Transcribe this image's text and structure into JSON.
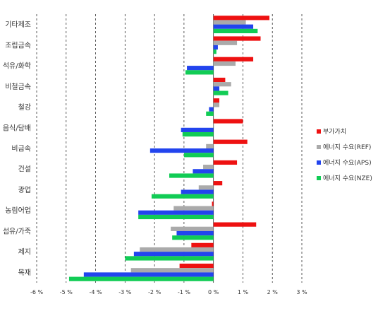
{
  "chart_data": {
    "type": "bar",
    "orientation": "horizontal",
    "categories": [
      "기타제조",
      "조립금속",
      "석유/화학",
      "비철금속",
      "철강",
      "음식/담배",
      "비금속",
      "건설",
      "광업",
      "농림어업",
      "섬유/가죽",
      "제지",
      "목재"
    ],
    "series": [
      {
        "name": "부가가치",
        "color": "#ee1111",
        "values": [
          1.9,
          1.6,
          1.35,
          0.4,
          0.2,
          1.0,
          1.15,
          0.8,
          0.3,
          -0.05,
          1.45,
          -0.75,
          -1.15
        ]
      },
      {
        "name": "에너지 수요(REF)",
        "color": "#aaaaaa",
        "values": [
          1.1,
          0.8,
          0.75,
          0.6,
          0.2,
          0.0,
          -0.25,
          -0.35,
          -0.5,
          -1.35,
          -1.45,
          -2.5,
          -2.8
        ]
      },
      {
        "name": "에너지 수요(APS)",
        "color": "#2244ee",
        "values": [
          1.35,
          0.15,
          -0.9,
          0.2,
          -0.15,
          -1.1,
          -2.15,
          -0.7,
          -1.1,
          -2.55,
          -1.25,
          -2.7,
          -4.4
        ]
      },
      {
        "name": "에너지 수요(NZE)",
        "color": "#11cc55",
        "values": [
          1.5,
          0.1,
          -0.95,
          0.5,
          -0.25,
          -1.05,
          -1.0,
          -1.5,
          -2.1,
          -2.55,
          -1.4,
          -3.0,
          -4.9
        ]
      }
    ],
    "x_ticks": [
      "-6 %",
      "-5 %",
      "-4 %",
      "-3 %",
      "-2 %",
      "-1 %",
      "0 %",
      "1 %",
      "2 %",
      "3 %"
    ],
    "xlim": [
      -6,
      3
    ],
    "grid": "vertical dashed",
    "legend_position": "right"
  }
}
